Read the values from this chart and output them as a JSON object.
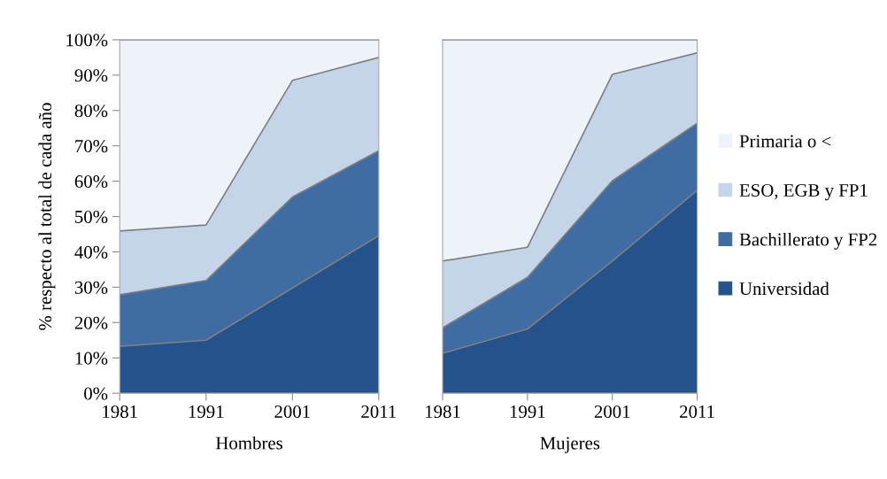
{
  "chart_data": [
    {
      "type": "area",
      "stacked": true,
      "xlabel": "Hombres",
      "ylabel": "% respecto al total de cada año",
      "x": [
        1981,
        1991,
        2001,
        2011
      ],
      "xlim": [
        1981,
        2011
      ],
      "xticks": [
        1981,
        1991,
        2001,
        2011
      ],
      "ylim": [
        0,
        100
      ],
      "yticks": [
        {
          "value": 0,
          "label": "0%"
        },
        {
          "value": 10,
          "label": "10%"
        },
        {
          "value": 20,
          "label": "20%"
        },
        {
          "value": 30,
          "label": "30%"
        },
        {
          "value": 40,
          "label": "40%"
        },
        {
          "value": 50,
          "label": "50%"
        },
        {
          "value": 60,
          "label": "60%"
        },
        {
          "value": 70,
          "label": "70%"
        },
        {
          "value": 80,
          "label": "80%"
        },
        {
          "value": 90,
          "label": "90%"
        },
        {
          "value": 100,
          "label": "100%"
        }
      ],
      "series": [
        {
          "color": "#23538a",
          "values": [
            13.3,
            15.0,
            29.8,
            44.6
          ]
        },
        {
          "color": "#3e6ca3",
          "values": [
            14.6,
            16.9,
            25.7,
            24.0
          ]
        },
        {
          "color": "#c5d5e9",
          "values": [
            18.0,
            15.7,
            33.0,
            26.4
          ]
        },
        {
          "color": "#eef3f9",
          "values": [
            54.1,
            52.4,
            11.5,
            5.0
          ]
        }
      ]
    },
    {
      "type": "area",
      "stacked": true,
      "xlabel": "Mujeres",
      "x": [
        1981,
        1991,
        2001,
        2011
      ],
      "xlim": [
        1981,
        2011
      ],
      "xticks": [
        1981,
        1991,
        2001,
        2011
      ],
      "ylim": [
        0,
        100
      ],
      "tick_labels": "x",
      "legend": "right",
      "series": [
        {
          "name": "Universidad",
          "color": "#23538a",
          "values": [
            11.3,
            18.2,
            37.4,
            57.4
          ]
        },
        {
          "name": "Bachillerato y FP2",
          "color": "#3e6ca3",
          "values": [
            7.2,
            14.6,
            22.7,
            19.0
          ]
        },
        {
          "name": "ESO, EGB y FP1",
          "color": "#c5d5e9",
          "values": [
            18.9,
            8.5,
            30.1,
            19.9
          ]
        },
        {
          "name": "Primaria o <",
          "color": "#eef3f9",
          "values": [
            62.6,
            58.7,
            9.8,
            3.7
          ]
        }
      ]
    }
  ]
}
